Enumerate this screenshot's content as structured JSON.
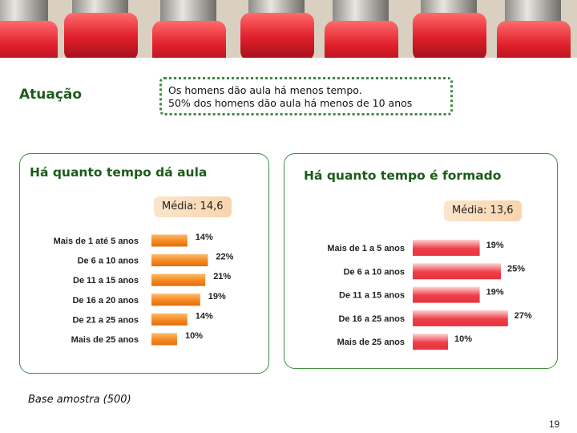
{
  "heading": "Atuação",
  "summary": {
    "line1": "Os homens dão aula há menos tempo.",
    "line2": "50% dos homens dão aula há menos de 10 anos"
  },
  "chart_data": [
    {
      "type": "bar",
      "orientation": "horizontal",
      "title": "Há quanto tempo dá aula",
      "annotation": "Média: 14,6",
      "categories": [
        "Mais de 1 até 5 anos",
        "De 6 a 10 anos",
        "De 11 a 15 anos",
        "De 16 a 20 anos",
        "De 21 a 25 anos",
        "Mais de 25 anos"
      ],
      "values": [
        14,
        22,
        21,
        19,
        14,
        10
      ],
      "value_suffix": "%",
      "bar_color": "#f5891f"
    },
    {
      "type": "bar",
      "orientation": "horizontal",
      "title": "Há quanto tempo é formado",
      "annotation": "Média: 13,6",
      "categories": [
        "Mais de 1 a 5 anos",
        "De 6 a 10 anos",
        "De 11 a 15 anos",
        "De 16 a 25 anos",
        "Mais de 25 anos"
      ],
      "values": [
        19,
        25,
        19,
        27,
        10
      ],
      "value_suffix": "%",
      "bar_color": "#ee3f49"
    }
  ],
  "footer": {
    "base_note": "Base amostra (500)",
    "page_number": "19"
  }
}
